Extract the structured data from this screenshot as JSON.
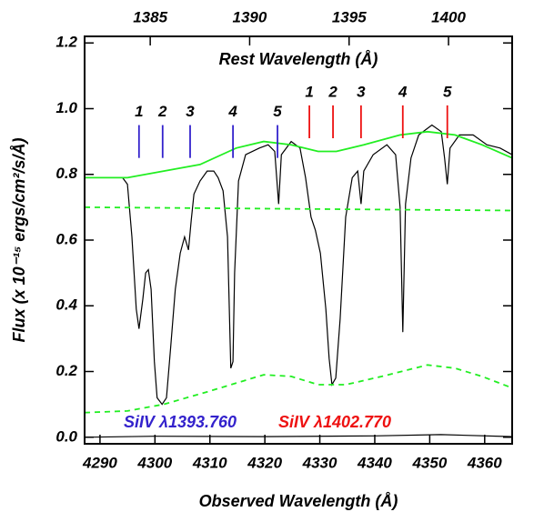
{
  "chart_data": {
    "type": "line",
    "xlabel": "Observed Wavelength (Å)",
    "ylabel": "Flux (x 10⁻¹⁵ ergs/cm²/s/Å)",
    "x2label": "Rest Wavelength (Å)",
    "xlim": [
      4287.2,
      4365
    ],
    "xticks": [
      4290,
      4300,
      4310,
      4320,
      4330,
      4340,
      4350,
      4360
    ],
    "x2lim": [
      1381.7,
      1403.2
    ],
    "x2ticks": [
      1385,
      1390,
      1395,
      1400
    ],
    "ylim": [
      -0.02,
      1.22
    ],
    "yticks": [
      {
        "value": 0,
        "label": "0.0"
      },
      0.2,
      0.4,
      0.6,
      0.8,
      {
        "value": 1,
        "label": "1.0"
      },
      1.2
    ],
    "series": [
      {
        "color": "#000000",
        "style": "solid",
        "x": [
          4287.2,
          4294.1,
          4295.0,
          4295.8,
          4296.6,
          4297.1,
          4297.8,
          4298.3,
          4298.8,
          4299.3,
          4299.9,
          4300.4,
          4301.3,
          4302.1,
          4302.9,
          4303.7,
          4304.6,
          4305.4,
          4306.1,
          4306.6,
          4307.1,
          4308.2,
          4309.5,
          4310.7,
          4311.5,
          4312.4,
          4313.2,
          4313.8,
          4314.2,
          4314.5,
          4315.2,
          4316.5,
          4319.0,
          4320.6,
          4321.8,
          4322.5,
          4323.0,
          4324.8,
          4326.4,
          4327.4,
          4328.4,
          4329.2,
          4330.1,
          4331.1,
          4331.7,
          4332.2,
          4332.9,
          4333.7,
          4334.7,
          4335.9,
          4336.9,
          4337.5,
          4338.0,
          4339.7,
          4342.2,
          4343.8,
          4344.6,
          4345.1,
          4345.6,
          4346.6,
          4348.0,
          4350.4,
          4352.1,
          4352.7,
          4353.2,
          4353.7,
          4355.4,
          4357.9,
          4360.4,
          4362.8,
          4365.0
        ],
        "values": [
          0.79,
          0.79,
          0.77,
          0.61,
          0.39,
          0.33,
          0.42,
          0.5,
          0.51,
          0.45,
          0.23,
          0.12,
          0.1,
          0.12,
          0.28,
          0.45,
          0.56,
          0.61,
          0.57,
          0.66,
          0.74,
          0.78,
          0.81,
          0.81,
          0.79,
          0.75,
          0.61,
          0.21,
          0.23,
          0.5,
          0.78,
          0.86,
          0.88,
          0.89,
          0.87,
          0.71,
          0.86,
          0.9,
          0.88,
          0.79,
          0.67,
          0.63,
          0.56,
          0.39,
          0.24,
          0.16,
          0.18,
          0.36,
          0.67,
          0.79,
          0.81,
          0.71,
          0.81,
          0.86,
          0.89,
          0.86,
          0.7,
          0.32,
          0.71,
          0.85,
          0.92,
          0.95,
          0.93,
          0.85,
          0.77,
          0.88,
          0.92,
          0.92,
          0.89,
          0.88,
          0.86
        ]
      },
      {
        "color": "#22ee22",
        "style": "solid",
        "x": [
          4287.2,
          4295.0,
          4301.6,
          4308.2,
          4314.8,
          4319.8,
          4324.8,
          4329.7,
          4333.0,
          4338.0,
          4344.6,
          4349.6,
          4354.6,
          4359.5,
          4365.0
        ],
        "values": [
          0.79,
          0.79,
          0.81,
          0.83,
          0.88,
          0.9,
          0.89,
          0.87,
          0.87,
          0.89,
          0.92,
          0.93,
          0.92,
          0.89,
          0.85
        ]
      },
      {
        "color": "#22ee22",
        "style": "dashed",
        "x": [
          4287.2,
          4365.0
        ],
        "values": [
          0.7,
          0.69
        ]
      },
      {
        "color": "#22ee22",
        "style": "dashed",
        "x": [
          4287.2,
          4295.0,
          4301.6,
          4309.9,
          4319.8,
          4324.8,
          4329.7,
          4334.7,
          4341.3,
          4349.6,
          4354.6,
          4359.5,
          4365.0
        ],
        "values": [
          0.075,
          0.08,
          0.1,
          0.14,
          0.19,
          0.185,
          0.16,
          0.16,
          0.185,
          0.22,
          0.21,
          0.185,
          0.15
        ]
      },
      {
        "color": "#000000",
        "style": "solid",
        "x": [
          4287.2,
          4300.0,
          4320.0,
          4340.0,
          4352.0,
          4365.0
        ],
        "values": [
          0.0,
          0.003,
          0.002,
          0.004,
          0.008,
          0.002
        ]
      }
    ],
    "markers": [
      {
        "label": "1",
        "x": 4297.1,
        "y": [
          0.85,
          0.95
        ],
        "color": "#3322cc"
      },
      {
        "label": "2",
        "x": 4301.4,
        "y": [
          0.85,
          0.95
        ],
        "color": "#3322cc"
      },
      {
        "label": "3",
        "x": 4306.4,
        "y": [
          0.85,
          0.95
        ],
        "color": "#3322cc"
      },
      {
        "label": "4",
        "x": 4314.2,
        "y": [
          0.85,
          0.95
        ],
        "color": "#3322cc"
      },
      {
        "label": "5",
        "x": 4322.3,
        "y": [
          0.85,
          0.95
        ],
        "color": "#3322cc"
      },
      {
        "label": "1",
        "x": 4328.1,
        "y": [
          0.91,
          1.01
        ],
        "color": "#ee1111"
      },
      {
        "label": "2",
        "x": 4332.4,
        "y": [
          0.91,
          1.01
        ],
        "color": "#ee1111"
      },
      {
        "label": "3",
        "x": 4337.5,
        "y": [
          0.91,
          1.01
        ],
        "color": "#ee1111"
      },
      {
        "label": "4",
        "x": 4345.1,
        "y": [
          0.91,
          1.01
        ],
        "color": "#ee1111"
      },
      {
        "label": "5",
        "x": 4353.2,
        "y": [
          0.91,
          1.01
        ],
        "color": "#ee1111"
      }
    ],
    "annotations": [
      {
        "text": "SiIV λ1393.760",
        "color": "#3322cc"
      },
      {
        "text": "SiIV λ1402.770",
        "color": "#ee1111"
      }
    ]
  }
}
